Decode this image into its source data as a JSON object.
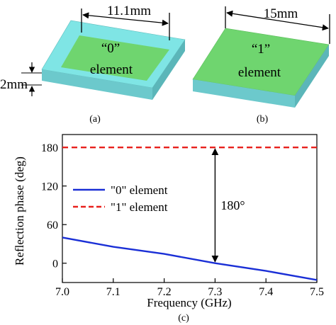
{
  "panel_a": {
    "label": "(a)",
    "inner_text_line1": "“0”",
    "inner_text_line2": "element",
    "width_dim": "11.1mm",
    "thickness_dim": "2mm",
    "colors": {
      "substrate_top": "#7fe5e5",
      "substrate_side": "#6cc9cc",
      "patch": "#6fd56f"
    }
  },
  "panel_b": {
    "label": "(b)",
    "inner_text_line1": "“1”",
    "inner_text_line2": "element",
    "width_dim": "15mm",
    "colors": {
      "patch": "#6fd56f",
      "substrate_side": "#6cc9cc"
    }
  },
  "panel_c": {
    "label": "(c)"
  },
  "chart_data": {
    "type": "line",
    "xlabel": "Frequency (GHz)",
    "ylabel": "Reflection phase (deg)",
    "xlim": [
      7.0,
      7.5
    ],
    "ylim": [
      -30,
      200
    ],
    "xticks": [
      7.0,
      7.1,
      7.2,
      7.3,
      7.4,
      7.5
    ],
    "xtick_labels": [
      "7.0",
      "7.1",
      "7.2",
      "7.3",
      "7.4",
      "7.5"
    ],
    "yticks": [
      0,
      60,
      120,
      180
    ],
    "ytick_labels": [
      "0",
      "60",
      "120",
      "180"
    ],
    "grid": false,
    "legend_position": "center-left",
    "series": [
      {
        "name": "\"0\" element",
        "color": "#1a2fd6",
        "dash": "solid",
        "x": [
          7.0,
          7.1,
          7.2,
          7.3,
          7.4,
          7.5
        ],
        "y": [
          40,
          25.5,
          14.5,
          0,
          -12,
          -26
        ]
      },
      {
        "name": "\"1\" element",
        "color": "#e8201c",
        "dash": "dashed",
        "x": [
          7.0,
          7.5
        ],
        "y": [
          180,
          180
        ]
      }
    ],
    "annotation": {
      "text": "180°",
      "x": 7.3,
      "y_from": 0,
      "y_to": 180
    }
  }
}
